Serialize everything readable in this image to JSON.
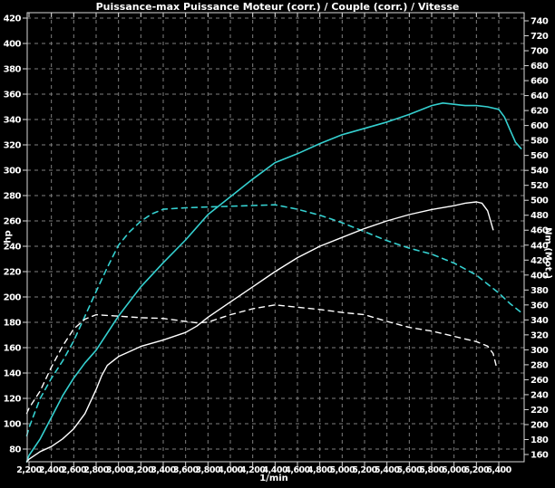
{
  "title": "Puissance-max Puissance Moteur (corr.) / Couple (corr.) / Vitesse",
  "colors": {
    "background": "#000000",
    "grid": "#7f7f7f",
    "border": "#d8d8d8",
    "text": "#ffffff",
    "cyan_curve": "#35d0d0",
    "white_curve": "#ffffff"
  },
  "chart_data": {
    "type": "line",
    "title": "Puissance-max Puissance Moteur (corr.) / Couple (corr.) / Vitesse",
    "xlabel": "1/min",
    "ylabel_left": "hp",
    "ylabel_right": "Nm (Mot.)",
    "x_axis": {
      "min": 2200,
      "max": 6400,
      "step": 200
    },
    "left_axis": {
      "min": 80,
      "max": 420,
      "step": 20,
      "unit": "hp"
    },
    "right_axis": {
      "min": 160,
      "max": 740,
      "step": 20,
      "unit": "Nm"
    },
    "grid": "dashed, vertical every 200 rpm, horizontal every 20 hp",
    "x_ticks": [
      "2,200",
      "2,400",
      "2,600",
      "2,800",
      "3,000",
      "3,200",
      "3,400",
      "3,600",
      "3,800",
      "4,000",
      "4,200",
      "4,400",
      "4,600",
      "4,800",
      "5,000",
      "5,200",
      "5,400",
      "5,600",
      "5,800",
      "6,000",
      "6,200",
      "6,400"
    ],
    "left_ticks": [
      "420",
      "400",
      "380",
      "360",
      "340",
      "320",
      "300",
      "280",
      "260",
      "240",
      "220",
      "200",
      "180",
      "160",
      "140",
      "120",
      "100",
      "80"
    ],
    "right_ticks": [
      "740",
      "720",
      "700",
      "680",
      "660",
      "640",
      "620",
      "600",
      "580",
      "560",
      "540",
      "520",
      "500",
      "480",
      "460",
      "440",
      "420",
      "400",
      "380",
      "360",
      "340",
      "320",
      "300",
      "280",
      "260",
      "240",
      "220",
      "200",
      "180",
      "160"
    ],
    "series": [
      {
        "name": "puissance-moteur-corr-run2",
        "legend": "Puissance Moteur (corr.)",
        "color": "cyan",
        "style": "solid",
        "axis": "left",
        "unit": "hp",
        "peak": {
          "rpm": 5900,
          "value": 353
        },
        "points": [
          [
            2180,
            70
          ],
          [
            2200,
            75
          ],
          [
            2300,
            88
          ],
          [
            2400,
            105
          ],
          [
            2500,
            122
          ],
          [
            2600,
            136
          ],
          [
            2700,
            148
          ],
          [
            2800,
            158
          ],
          [
            3000,
            185
          ],
          [
            3200,
            208
          ],
          [
            3400,
            227
          ],
          [
            3600,
            245
          ],
          [
            3800,
            265
          ],
          [
            4000,
            279
          ],
          [
            4200,
            293
          ],
          [
            4400,
            306
          ],
          [
            4600,
            313
          ],
          [
            4800,
            321
          ],
          [
            5000,
            328
          ],
          [
            5200,
            333
          ],
          [
            5400,
            338
          ],
          [
            5600,
            344
          ],
          [
            5800,
            351
          ],
          [
            5900,
            353
          ],
          [
            6000,
            352
          ],
          [
            6100,
            351
          ],
          [
            6200,
            351
          ],
          [
            6300,
            350
          ],
          [
            6400,
            348
          ],
          [
            6450,
            342
          ],
          [
            6500,
            332
          ],
          [
            6550,
            322
          ],
          [
            6600,
            317
          ]
        ]
      },
      {
        "name": "couple-corr-run2",
        "legend": "Couple (corr.)",
        "color": "cyan",
        "style": "dashed",
        "axis": "right",
        "unit": "Nm",
        "peak": {
          "rpm": 4400,
          "value": 494
        },
        "points": [
          [
            2180,
            185
          ],
          [
            2200,
            196
          ],
          [
            2300,
            235
          ],
          [
            2400,
            262
          ],
          [
            2500,
            285
          ],
          [
            2600,
            312
          ],
          [
            2700,
            345
          ],
          [
            2800,
            378
          ],
          [
            2900,
            410
          ],
          [
            3000,
            440
          ],
          [
            3100,
            458
          ],
          [
            3200,
            472
          ],
          [
            3300,
            482
          ],
          [
            3400,
            488
          ],
          [
            3600,
            490
          ],
          [
            3800,
            491
          ],
          [
            4000,
            492
          ],
          [
            4200,
            493
          ],
          [
            4400,
            494
          ],
          [
            4600,
            488
          ],
          [
            4800,
            480
          ],
          [
            5000,
            470
          ],
          [
            5200,
            458
          ],
          [
            5400,
            446
          ],
          [
            5600,
            436
          ],
          [
            5800,
            428
          ],
          [
            6000,
            416
          ],
          [
            6200,
            400
          ],
          [
            6400,
            376
          ],
          [
            6500,
            362
          ],
          [
            6600,
            350
          ]
        ]
      },
      {
        "name": "puissance-moteur-corr-run1",
        "legend": "Puissance Moteur (corr.)",
        "color": "white",
        "style": "solid",
        "axis": "left",
        "unit": "hp",
        "peak": {
          "rpm": 6200,
          "value": 275
        },
        "points": [
          [
            2180,
            70
          ],
          [
            2200,
            72
          ],
          [
            2300,
            78
          ],
          [
            2400,
            82
          ],
          [
            2500,
            88
          ],
          [
            2600,
            96
          ],
          [
            2700,
            108
          ],
          [
            2800,
            127
          ],
          [
            2850,
            138
          ],
          [
            2900,
            146
          ],
          [
            3000,
            153
          ],
          [
            3100,
            157
          ],
          [
            3200,
            161
          ],
          [
            3400,
            166
          ],
          [
            3600,
            172
          ],
          [
            3700,
            177
          ],
          [
            3800,
            184
          ],
          [
            4000,
            196
          ],
          [
            4200,
            208
          ],
          [
            4400,
            220
          ],
          [
            4600,
            231
          ],
          [
            4800,
            240
          ],
          [
            5000,
            247
          ],
          [
            5200,
            254
          ],
          [
            5400,
            260
          ],
          [
            5600,
            265
          ],
          [
            5800,
            269
          ],
          [
            6000,
            272
          ],
          [
            6100,
            274
          ],
          [
            6200,
            275
          ],
          [
            6250,
            274
          ],
          [
            6300,
            268
          ],
          [
            6350,
            253
          ]
        ]
      },
      {
        "name": "couple-corr-run1",
        "legend": "Couple (corr.)",
        "color": "white",
        "style": "dashed",
        "axis": "right",
        "unit": "Nm",
        "peak": {
          "rpm": 4400,
          "value": 360
        },
        "points": [
          [
            2180,
            215
          ],
          [
            2200,
            222
          ],
          [
            2300,
            245
          ],
          [
            2400,
            277
          ],
          [
            2500,
            305
          ],
          [
            2600,
            328
          ],
          [
            2700,
            341
          ],
          [
            2800,
            347
          ],
          [
            3000,
            345
          ],
          [
            3200,
            343
          ],
          [
            3400,
            342
          ],
          [
            3600,
            338
          ],
          [
            3700,
            336
          ],
          [
            3800,
            337
          ],
          [
            4000,
            347
          ],
          [
            4200,
            355
          ],
          [
            4400,
            360
          ],
          [
            4600,
            357
          ],
          [
            4800,
            354
          ],
          [
            5000,
            350
          ],
          [
            5200,
            347
          ],
          [
            5400,
            338
          ],
          [
            5600,
            330
          ],
          [
            5800,
            325
          ],
          [
            6000,
            318
          ],
          [
            6200,
            311
          ],
          [
            6300,
            305
          ],
          [
            6350,
            295
          ],
          [
            6380,
            277
          ]
        ]
      }
    ]
  }
}
